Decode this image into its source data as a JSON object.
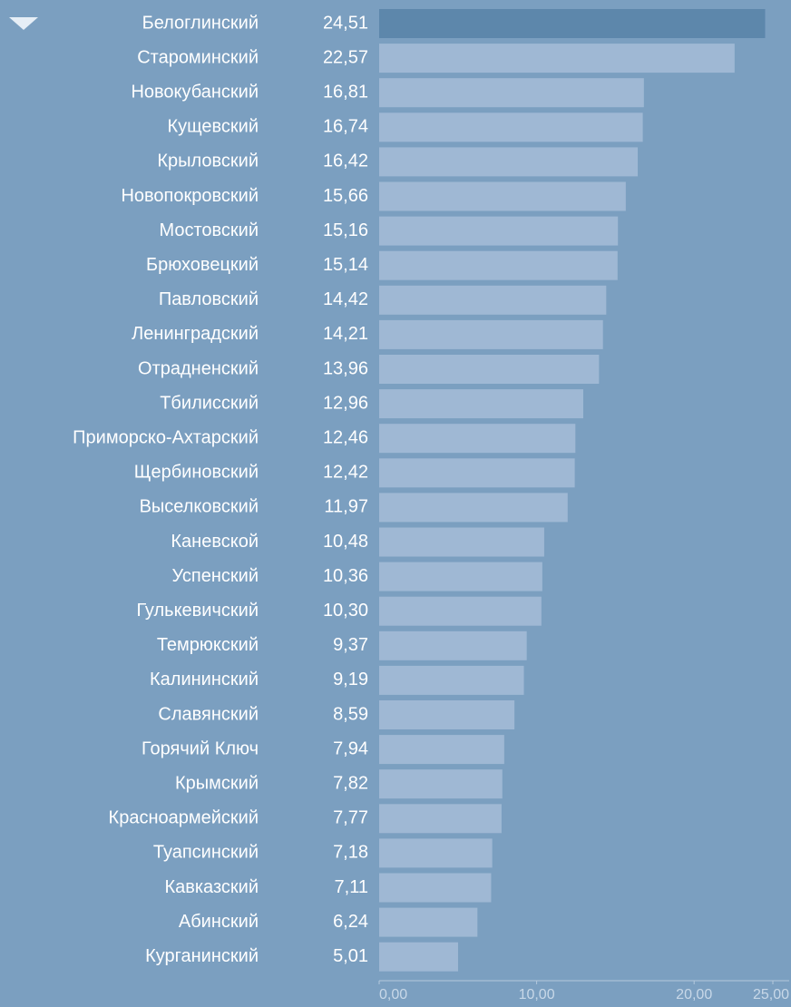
{
  "chart_data": {
    "type": "barh",
    "categories": [
      "Белоглинский",
      "Староминский",
      "Новокубанский",
      "Кущевский",
      "Крыловский",
      "Новопокровский",
      "Мостовский",
      "Брюховецкий",
      "Павловский",
      "Ленинградский",
      "Отрадненский",
      "Тбилисский",
      "Приморско-Ахтарский",
      "Щербиновский",
      "Выселковский",
      "Каневской",
      "Успенский",
      "Гулькевичский",
      "Темрюкский",
      "Калининский",
      "Славянский",
      "Горячий Ключ",
      "Крымский",
      "Красноармейский",
      "Туапсинский",
      "Кавказский",
      "Абинский",
      "Курганинский"
    ],
    "values": [
      24.51,
      22.57,
      16.81,
      16.74,
      16.42,
      15.66,
      15.16,
      15.14,
      14.42,
      14.21,
      13.96,
      12.96,
      12.46,
      12.42,
      11.97,
      10.48,
      10.36,
      10.3,
      9.37,
      9.19,
      8.59,
      7.94,
      7.82,
      7.77,
      7.18,
      7.11,
      6.24,
      5.01
    ],
    "value_labels": [
      "24,51",
      "22,57",
      "16,81",
      "16,74",
      "16,42",
      "15,66",
      "15,16",
      "15,14",
      "14,42",
      "14,21",
      "13,96",
      "12,96",
      "12,46",
      "12,42",
      "11,97",
      "10,48",
      "10,36",
      "10,30",
      "9,37",
      "9,19",
      "8,59",
      "7,94",
      "7,82",
      "7,77",
      "7,18",
      "7,11",
      "6,24",
      "5,01"
    ],
    "color": "#9fb8d4",
    "highlight": {
      "index": 0,
      "color": "#5d87ab"
    },
    "xlim": [
      0,
      25
    ],
    "xticks": [
      {
        "value": 0,
        "label": "0,00"
      },
      {
        "value": 10,
        "label": "10,00"
      },
      {
        "value": 20,
        "label": "20,00"
      },
      {
        "value": 25,
        "label": "25,00"
      }
    ]
  }
}
